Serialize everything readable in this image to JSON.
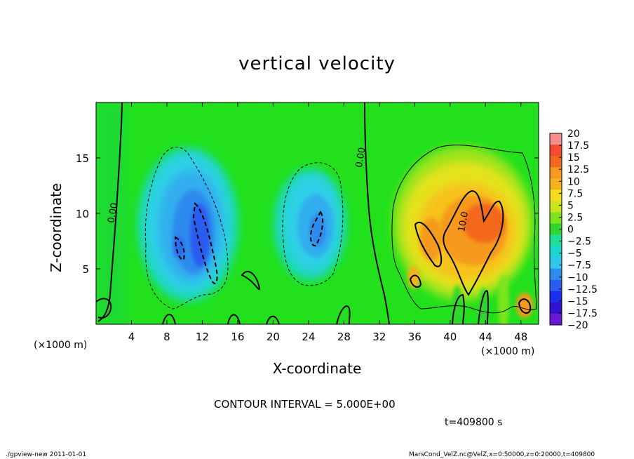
{
  "title": "vertical velocity",
  "contour_interval_text": "CONTOUR INTERVAL = 5.000E+00",
  "time_text": "t=409800 s",
  "footer_left": "./gpview-new   2011-01-01",
  "footer_right": "MarsCond_VelZ.nc@VelZ,x=0:50000,z=0:20000,t=409800",
  "colors": {
    "background_field": "#22e01c",
    "contour_line": "#000000"
  },
  "chart_data": {
    "type": "heatmap",
    "title": "vertical velocity",
    "xlabel": "X-coordinate",
    "ylabel": "Z-coordinate",
    "x_unit_label": "(×1000 m)",
    "xlim": [
      0,
      50
    ],
    "ylim": [
      0,
      20
    ],
    "x_ticks": [
      4,
      8,
      12,
      16,
      20,
      24,
      28,
      32,
      36,
      40,
      44,
      48
    ],
    "y_ticks": [
      5,
      10,
      15
    ],
    "contour_labels": [
      {
        "text": "0.00",
        "x": 2.2,
        "z": 10.0,
        "angle": -80
      },
      {
        "text": "0.00",
        "x": 30.2,
        "z": 15.0,
        "angle": -80
      },
      {
        "text": "10.0",
        "x": 41.8,
        "z": 9.2,
        "angle": -80
      }
    ],
    "colorbar": {
      "levels": [
        20,
        17.5,
        15,
        12.5,
        10,
        7.5,
        5,
        2.5,
        0,
        -2.5,
        -5,
        -7.5,
        -10,
        -12.5,
        -15,
        -17.5,
        -20
      ],
      "labels": [
        "20",
        "17.5",
        "15",
        "12.5",
        "10",
        "7.5",
        "5",
        "2.5",
        "0",
        "−2.5",
        "−5",
        "−7.5",
        "−10",
        "−12.5",
        "−15",
        "−17.5",
        "−20"
      ],
      "colors": [
        "#f78f8f",
        "#f44c34",
        "#f4671e",
        "#f59a1e",
        "#f6b21c",
        "#f5dd1b",
        "#cde41a",
        "#7de51d",
        "#2ed62e",
        "#1de19a",
        "#1ad7d4",
        "#2fc7ee",
        "#2f8bee",
        "#2c5cf0",
        "#1b2ff2",
        "#3212cf",
        "#6718d2"
      ]
    },
    "features": [
      {
        "kind": "downdraft",
        "x_range": [
          6,
          15
        ],
        "z_range": [
          1.5,
          16
        ],
        "peak_w": -15,
        "peak_at": [
          10.5,
          8.5
        ]
      },
      {
        "kind": "downdraft",
        "x_range": [
          21,
          28
        ],
        "z_range": [
          3,
          14
        ],
        "peak_w": -10,
        "peak_at": [
          24.5,
          8.5
        ]
      },
      {
        "kind": "updraft",
        "x_range": [
          34,
          49
        ],
        "z_range": [
          0,
          16
        ],
        "peak_w": 12.5,
        "peak_at": [
          44,
          9
        ]
      }
    ]
  }
}
